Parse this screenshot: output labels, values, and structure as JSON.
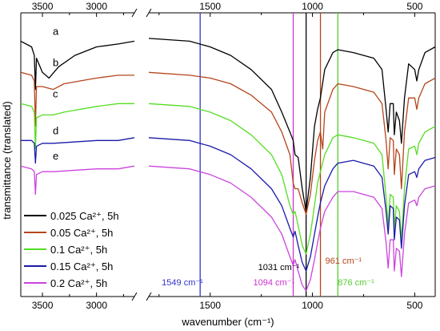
{
  "chart_data": {
    "type": "line",
    "xlabel": "wavenumber (cm⁻¹)",
    "ylabel": "transmittance (translated)",
    "x_reversed": true,
    "axis_break": {
      "left_segment": [
        3700,
        2650
      ],
      "right_segment": [
        1800,
        400
      ]
    },
    "left_ticks": [
      {
        "value": 3500,
        "label": "3500"
      },
      {
        "value": 3000,
        "label": "3000"
      }
    ],
    "right_ticks": [
      {
        "value": 1500,
        "label": "1500"
      },
      {
        "value": 1000,
        "label": "1000"
      },
      {
        "value": 500,
        "label": "500"
      }
    ],
    "reference_lines": [
      {
        "x": 1549,
        "label": "1549 cm⁻¹",
        "color": "#3333cc"
      },
      {
        "x": 1094,
        "label": "1094 cm⁻¹",
        "color": "#cc33cc"
      },
      {
        "x": 1031,
        "label": "1031 cm⁻¹",
        "color": "#000000"
      },
      {
        "x": 961,
        "label": "961 cm⁻¹",
        "color": "#b5451b"
      },
      {
        "x": 876,
        "label": "876 cm⁻¹",
        "color": "#55cc33"
      }
    ],
    "curve_letters": [
      "a",
      "b",
      "c",
      "d",
      "e"
    ],
    "series": [
      {
        "name": "0.025 Ca²⁺, 5h",
        "color": "#000000",
        "left_points": [
          [
            3700,
            0.9
          ],
          [
            3600,
            0.88
          ],
          [
            3575,
            0.85
          ],
          [
            3565,
            0.73
          ],
          [
            3555,
            0.84
          ],
          [
            3500,
            0.79
          ],
          [
            3440,
            0.77
          ],
          [
            3350,
            0.81
          ],
          [
            3200,
            0.85
          ],
          [
            3000,
            0.88
          ],
          [
            2800,
            0.89
          ],
          [
            2650,
            0.9
          ]
        ],
        "right_points": [
          [
            1800,
            0.91
          ],
          [
            1600,
            0.9
          ],
          [
            1500,
            0.88
          ],
          [
            1400,
            0.85
          ],
          [
            1300,
            0.8
          ],
          [
            1200,
            0.73
          ],
          [
            1150,
            0.65
          ],
          [
            1110,
            0.58
          ],
          [
            1094,
            0.55
          ],
          [
            1085,
            0.5
          ],
          [
            1070,
            0.49
          ],
          [
            1050,
            0.38
          ],
          [
            1031,
            0.3
          ],
          [
            1010,
            0.42
          ],
          [
            990,
            0.6
          ],
          [
            975,
            0.66
          ],
          [
            961,
            0.7
          ],
          [
            940,
            0.8
          ],
          [
            900,
            0.86
          ],
          [
            876,
            0.87
          ],
          [
            800,
            0.86
          ],
          [
            700,
            0.84
          ],
          [
            660,
            0.8
          ],
          [
            640,
            0.66
          ],
          [
            630,
            0.58
          ],
          [
            620,
            0.68
          ],
          [
            605,
            0.68
          ],
          [
            600,
            0.57
          ],
          [
            590,
            0.65
          ],
          [
            575,
            0.62
          ],
          [
            565,
            0.54
          ],
          [
            550,
            0.7
          ],
          [
            530,
            0.82
          ],
          [
            500,
            0.8
          ],
          [
            490,
            0.76
          ],
          [
            480,
            0.8
          ],
          [
            450,
            0.86
          ],
          [
            400,
            0.88
          ]
        ]
      },
      {
        "name": "0.05 Ca²⁺, 5h",
        "color": "#b5451b",
        "left_points": [
          [
            3700,
            0.79
          ],
          [
            3600,
            0.78
          ],
          [
            3575,
            0.76
          ],
          [
            3565,
            0.6
          ],
          [
            3555,
            0.74
          ],
          [
            3500,
            0.74
          ],
          [
            3400,
            0.73
          ],
          [
            3300,
            0.75
          ],
          [
            3000,
            0.77
          ],
          [
            2800,
            0.78
          ],
          [
            2650,
            0.78
          ]
        ],
        "right_points": [
          [
            1800,
            0.79
          ],
          [
            1600,
            0.78
          ],
          [
            1500,
            0.77
          ],
          [
            1400,
            0.75
          ],
          [
            1300,
            0.71
          ],
          [
            1200,
            0.65
          ],
          [
            1150,
            0.58
          ],
          [
            1110,
            0.5
          ],
          [
            1094,
            0.4
          ],
          [
            1085,
            0.38
          ],
          [
            1070,
            0.38
          ],
          [
            1050,
            0.33
          ],
          [
            1031,
            0.29
          ],
          [
            1010,
            0.36
          ],
          [
            990,
            0.48
          ],
          [
            975,
            0.55
          ],
          [
            961,
            0.58
          ],
          [
            950,
            0.52
          ],
          [
            940,
            0.65
          ],
          [
            900,
            0.73
          ],
          [
            876,
            0.75
          ],
          [
            800,
            0.74
          ],
          [
            700,
            0.72
          ],
          [
            660,
            0.68
          ],
          [
            640,
            0.55
          ],
          [
            630,
            0.45
          ],
          [
            620,
            0.56
          ],
          [
            605,
            0.55
          ],
          [
            600,
            0.43
          ],
          [
            590,
            0.52
          ],
          [
            575,
            0.5
          ],
          [
            565,
            0.38
          ],
          [
            550,
            0.58
          ],
          [
            530,
            0.7
          ],
          [
            500,
            0.7
          ],
          [
            490,
            0.66
          ],
          [
            480,
            0.7
          ],
          [
            450,
            0.75
          ],
          [
            400,
            0.77
          ]
        ]
      },
      {
        "name": "0.1 Ca²⁺, 5h",
        "color": "#55dd22",
        "left_points": [
          [
            3700,
            0.68
          ],
          [
            3600,
            0.67
          ],
          [
            3575,
            0.65
          ],
          [
            3565,
            0.52
          ],
          [
            3555,
            0.63
          ],
          [
            3500,
            0.64
          ],
          [
            3400,
            0.64
          ],
          [
            3300,
            0.65
          ],
          [
            3000,
            0.67
          ],
          [
            2800,
            0.68
          ],
          [
            2650,
            0.68
          ]
        ],
        "right_points": [
          [
            1800,
            0.68
          ],
          [
            1600,
            0.67
          ],
          [
            1500,
            0.65
          ],
          [
            1400,
            0.62
          ],
          [
            1300,
            0.57
          ],
          [
            1200,
            0.5
          ],
          [
            1150,
            0.43
          ],
          [
            1110,
            0.32
          ],
          [
            1094,
            0.29
          ],
          [
            1085,
            0.3
          ],
          [
            1070,
            0.25
          ],
          [
            1050,
            0.18
          ],
          [
            1031,
            0.15
          ],
          [
            1010,
            0.22
          ],
          [
            990,
            0.32
          ],
          [
            975,
            0.4
          ],
          [
            961,
            0.44
          ],
          [
            940,
            0.5
          ],
          [
            900,
            0.56
          ],
          [
            876,
            0.57
          ],
          [
            800,
            0.56
          ],
          [
            700,
            0.54
          ],
          [
            660,
            0.5
          ],
          [
            640,
            0.35
          ],
          [
            630,
            0.25
          ],
          [
            620,
            0.36
          ],
          [
            605,
            0.35
          ],
          [
            600,
            0.24
          ],
          [
            590,
            0.32
          ],
          [
            575,
            0.3
          ],
          [
            565,
            0.2
          ],
          [
            550,
            0.38
          ],
          [
            530,
            0.52
          ],
          [
            500,
            0.53
          ],
          [
            490,
            0.5
          ],
          [
            480,
            0.54
          ],
          [
            450,
            0.58
          ],
          [
            400,
            0.6
          ]
        ]
      },
      {
        "name": "0.15 Ca²⁺, 5h",
        "color": "#1a1aaa",
        "left_points": [
          [
            3700,
            0.55
          ],
          [
            3600,
            0.55
          ],
          [
            3575,
            0.54
          ],
          [
            3565,
            0.47
          ],
          [
            3555,
            0.53
          ],
          [
            3500,
            0.54
          ],
          [
            3400,
            0.54
          ],
          [
            3000,
            0.55
          ],
          [
            2800,
            0.55
          ],
          [
            2650,
            0.56
          ]
        ],
        "right_points": [
          [
            1800,
            0.56
          ],
          [
            1600,
            0.55
          ],
          [
            1500,
            0.53
          ],
          [
            1400,
            0.5
          ],
          [
            1300,
            0.45
          ],
          [
            1200,
            0.38
          ],
          [
            1150,
            0.32
          ],
          [
            1110,
            0.24
          ],
          [
            1094,
            0.21
          ],
          [
            1085,
            0.23
          ],
          [
            1070,
            0.18
          ],
          [
            1050,
            0.12
          ],
          [
            1031,
            0.09
          ],
          [
            1010,
            0.14
          ],
          [
            990,
            0.22
          ],
          [
            975,
            0.28
          ],
          [
            961,
            0.33
          ],
          [
            940,
            0.39
          ],
          [
            900,
            0.45
          ],
          [
            876,
            0.47
          ],
          [
            800,
            0.48
          ],
          [
            700,
            0.46
          ],
          [
            660,
            0.42
          ],
          [
            640,
            0.3
          ],
          [
            630,
            0.22
          ],
          [
            620,
            0.32
          ],
          [
            605,
            0.31
          ],
          [
            600,
            0.2
          ],
          [
            590,
            0.28
          ],
          [
            575,
            0.27
          ],
          [
            565,
            0.17
          ],
          [
            550,
            0.32
          ],
          [
            530,
            0.43
          ],
          [
            500,
            0.44
          ],
          [
            490,
            0.42
          ],
          [
            480,
            0.45
          ],
          [
            450,
            0.48
          ],
          [
            400,
            0.49
          ]
        ]
      },
      {
        "name": "0.2 Ca²⁺, 5h",
        "color": "#cc44dd",
        "left_points": [
          [
            3700,
            0.46
          ],
          [
            3600,
            0.45
          ],
          [
            3575,
            0.44
          ],
          [
            3565,
            0.36
          ],
          [
            3555,
            0.43
          ],
          [
            3500,
            0.44
          ],
          [
            3400,
            0.44
          ],
          [
            3000,
            0.45
          ],
          [
            2800,
            0.45
          ],
          [
            2650,
            0.46
          ]
        ],
        "right_points": [
          [
            1800,
            0.46
          ],
          [
            1600,
            0.45
          ],
          [
            1500,
            0.43
          ],
          [
            1400,
            0.4
          ],
          [
            1300,
            0.35
          ],
          [
            1200,
            0.28
          ],
          [
            1150,
            0.22
          ],
          [
            1110,
            0.14
          ],
          [
            1094,
            0.11
          ],
          [
            1085,
            0.13
          ],
          [
            1070,
            0.09
          ],
          [
            1050,
            0.04
          ],
          [
            1031,
            0.02
          ],
          [
            1010,
            0.06
          ],
          [
            990,
            0.13
          ],
          [
            975,
            0.19
          ],
          [
            961,
            0.24
          ],
          [
            940,
            0.3
          ],
          [
            900,
            0.35
          ],
          [
            876,
            0.37
          ],
          [
            800,
            0.37
          ],
          [
            700,
            0.35
          ],
          [
            660,
            0.31
          ],
          [
            640,
            0.19
          ],
          [
            630,
            0.1
          ],
          [
            620,
            0.2
          ],
          [
            605,
            0.2
          ],
          [
            600,
            0.09
          ],
          [
            590,
            0.17
          ],
          [
            575,
            0.16
          ],
          [
            565,
            0.07
          ],
          [
            550,
            0.22
          ],
          [
            530,
            0.33
          ],
          [
            500,
            0.34
          ],
          [
            490,
            0.32
          ],
          [
            480,
            0.35
          ],
          [
            450,
            0.38
          ],
          [
            400,
            0.39
          ]
        ]
      }
    ]
  }
}
